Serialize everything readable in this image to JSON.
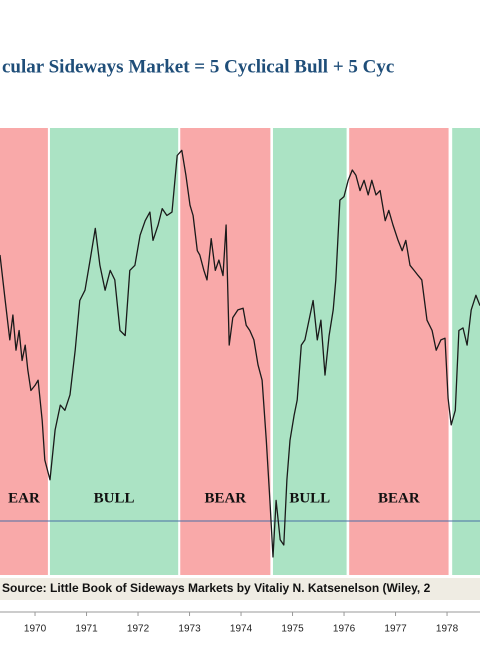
{
  "chart_data": {
    "type": "line",
    "title": "cular Sideways Market = 5 Cyclical Bull + 5 Cyc",
    "source": "Source: Little Book of Sideways Markets by Vitaliy N. Katsenelson (Wiley, 2",
    "xlim": [
      1969.32,
      1978.64
    ],
    "xticks": [
      1970,
      1971,
      1972,
      1973,
      1974,
      1975,
      1976,
      1977,
      1978
    ],
    "ylim": [
      556,
      1077
    ],
    "bands": [
      {
        "start": 1969.32,
        "end": 1970.25,
        "label": "EAR",
        "color": "#f9a9a9"
      },
      {
        "start": 1970.29,
        "end": 1972.78,
        "label": "BULL",
        "color": "#abe3c4"
      },
      {
        "start": 1972.82,
        "end": 1974.57,
        "label": "BEAR",
        "color": "#f9a9a9"
      },
      {
        "start": 1974.62,
        "end": 1976.05,
        "label": "BULL",
        "color": "#abe3c4"
      },
      {
        "start": 1976.1,
        "end": 1978.03,
        "label": "BEAR",
        "color": "#f9a9a9"
      },
      {
        "start": 1978.1,
        "end": 1978.64,
        "color": "#abe3c4"
      }
    ],
    "reference_line": {
      "value": 619,
      "color": "#4a6fa5"
    },
    "series": [
      {
        "color": "#1a1a1a",
        "x": [
          1969.32,
          1969.42,
          1969.51,
          1969.57,
          1969.63,
          1969.69,
          1969.75,
          1969.81,
          1969.86,
          1969.92,
          1970.0,
          1970.06,
          1970.14,
          1970.19,
          1970.29,
          1970.39,
          1970.49,
          1970.58,
          1970.68,
          1970.78,
          1970.87,
          1970.97,
          1971.07,
          1971.17,
          1971.26,
          1971.36,
          1971.46,
          1971.55,
          1971.65,
          1971.75,
          1971.84,
          1971.94,
          1972.04,
          1972.14,
          1972.23,
          1972.29,
          1972.39,
          1972.47,
          1972.56,
          1972.66,
          1972.76,
          1972.85,
          1972.93,
          1973.01,
          1973.07,
          1973.15,
          1973.2,
          1973.28,
          1973.34,
          1973.42,
          1973.5,
          1973.57,
          1973.65,
          1973.71,
          1973.77,
          1973.84,
          1973.94,
          1974.04,
          1974.1,
          1974.17,
          1974.25,
          1974.33,
          1974.41,
          1974.49,
          1974.56,
          1974.62,
          1974.68,
          1974.76,
          1974.83,
          1974.89,
          1974.95,
          1975.03,
          1975.09,
          1975.17,
          1975.24,
          1975.32,
          1975.4,
          1975.48,
          1975.55,
          1975.63,
          1975.71,
          1975.79,
          1975.84,
          1975.92,
          1976.0,
          1976.08,
          1976.16,
          1976.23,
          1976.31,
          1976.39,
          1976.47,
          1976.54,
          1976.62,
          1976.7,
          1976.8,
          1976.87,
          1976.95,
          1977.05,
          1977.13,
          1977.2,
          1977.28,
          1977.36,
          1977.44,
          1977.51,
          1977.61,
          1977.71,
          1977.79,
          1977.88,
          1977.96,
          1978.02,
          1978.08,
          1978.16,
          1978.23,
          1978.31,
          1978.39,
          1978.47,
          1978.56,
          1978.64
        ],
        "values": [
          929,
          876,
          830,
          859,
          818,
          841,
          806,
          824,
          795,
          771,
          777,
          783,
          736,
          690,
          667,
          725,
          754,
          748,
          766,
          818,
          876,
          888,
          923,
          960,
          917,
          888,
          911,
          900,
          841,
          835,
          911,
          917,
          952,
          969,
          979,
          946,
          964,
          983,
          975,
          979,
          1045,
          1051,
          1022,
          987,
          975,
          934,
          929,
          911,
          900,
          948,
          911,
          923,
          905,
          964,
          824,
          856,
          865,
          867,
          847,
          841,
          830,
          801,
          783,
          713,
          643,
          577,
          643,
          597,
          591,
          667,
          713,
          742,
          760,
          824,
          830,
          853,
          876,
          830,
          853,
          789,
          835,
          865,
          900,
          993,
          997,
          1016,
          1028,
          1022,
          1004,
          1016,
          999,
          1016,
          999,
          1004,
          969,
          981,
          964,
          946,
          934,
          946,
          917,
          911,
          905,
          900,
          853,
          841,
          818,
          830,
          832,
          762,
          731,
          748,
          841,
          844,
          824,
          865,
          882,
          870
        ]
      }
    ]
  }
}
